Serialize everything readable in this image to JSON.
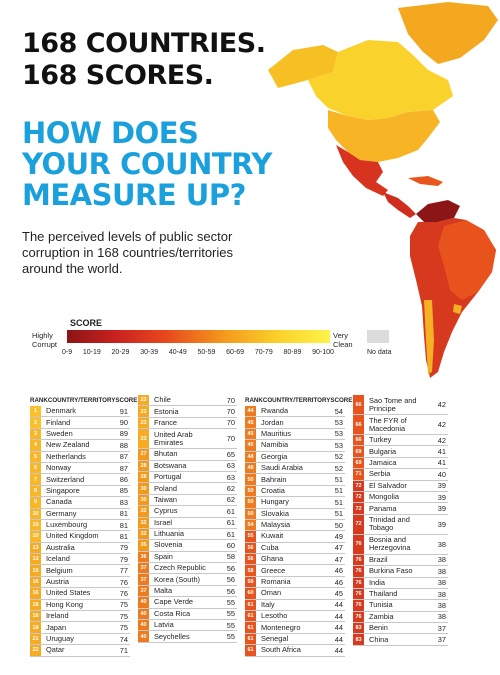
{
  "headline": {
    "line1": "168 COUNTRIES.",
    "line2": "168 SCORES."
  },
  "question": {
    "line1": "HOW DOES",
    "line2": "YOUR COUNTRY",
    "line3": "MEASURE UP?"
  },
  "intro": "The perceived levels of public sector corruption in 168 countries/territories around the world.",
  "legend": {
    "title": "SCORE",
    "left_label": [
      "Highly",
      "Corrupt"
    ],
    "right_label": [
      "Very",
      "Clean"
    ],
    "ranges": [
      "0-9",
      "10-19",
      "20-29",
      "30-39",
      "40-49",
      "50-59",
      "60-69",
      "70-79",
      "80-89",
      "90-100"
    ],
    "no_data": "No data",
    "colors": [
      "#8c1515",
      "#c82020",
      "#e8491d",
      "#f49a1c",
      "#fbd02a",
      "#fff34a"
    ],
    "no_data_color": "#dcdcdc"
  },
  "table": {
    "headers": {
      "rank": "RANK",
      "country": "COUNTRY/TERRITORY",
      "score": "SCORE"
    },
    "columns": [
      [
        {
          "rank": "1",
          "country": "Denmark",
          "score": "91"
        },
        {
          "rank": "2",
          "country": "Finland",
          "score": "90"
        },
        {
          "rank": "3",
          "country": "Sweden",
          "score": "89"
        },
        {
          "rank": "4",
          "country": "New Zealand",
          "score": "88"
        },
        {
          "rank": "5",
          "country": "Netherlands",
          "score": "87"
        },
        {
          "rank": "5",
          "country": "Norway",
          "score": "87"
        },
        {
          "rank": "7",
          "country": "Switzerland",
          "score": "86"
        },
        {
          "rank": "8",
          "country": "Singapore",
          "score": "85"
        },
        {
          "rank": "9",
          "country": "Canada",
          "score": "83"
        },
        {
          "rank": "10",
          "country": "Germany",
          "score": "81"
        },
        {
          "rank": "10",
          "country": "Luxembourg",
          "score": "81"
        },
        {
          "rank": "10",
          "country": "United Kingdom",
          "score": "81"
        },
        {
          "rank": "13",
          "country": "Australia",
          "score": "79"
        },
        {
          "rank": "13",
          "country": "Iceland",
          "score": "79"
        },
        {
          "rank": "15",
          "country": "Belgium",
          "score": "77"
        },
        {
          "rank": "16",
          "country": "Austria",
          "score": "76"
        },
        {
          "rank": "16",
          "country": "United States",
          "score": "76"
        },
        {
          "rank": "18",
          "country": "Hong Kong",
          "score": "75"
        },
        {
          "rank": "18",
          "country": "Ireland",
          "score": "75"
        },
        {
          "rank": "18",
          "country": "Japan",
          "score": "75"
        },
        {
          "rank": "21",
          "country": "Uruguay",
          "score": "74"
        },
        {
          "rank": "22",
          "country": "Qatar",
          "score": "71"
        }
      ],
      [
        {
          "rank": "23",
          "country": "Chile",
          "score": "70"
        },
        {
          "rank": "23",
          "country": "Estonia",
          "score": "70"
        },
        {
          "rank": "23",
          "country": "France",
          "score": "70"
        },
        {
          "rank": "23",
          "country": "United Arab Emirates",
          "score": "70"
        },
        {
          "rank": "27",
          "country": "Bhutan",
          "score": "65"
        },
        {
          "rank": "28",
          "country": "Botswana",
          "score": "63"
        },
        {
          "rank": "28",
          "country": "Portugal",
          "score": "63"
        },
        {
          "rank": "30",
          "country": "Poland",
          "score": "62"
        },
        {
          "rank": "30",
          "country": "Taiwan",
          "score": "62"
        },
        {
          "rank": "32",
          "country": "Cyprus",
          "score": "61"
        },
        {
          "rank": "32",
          "country": "Israel",
          "score": "61"
        },
        {
          "rank": "32",
          "country": "Lithuania",
          "score": "61"
        },
        {
          "rank": "35",
          "country": "Slovenia",
          "score": "60"
        },
        {
          "rank": "36",
          "country": "Spain",
          "score": "58"
        },
        {
          "rank": "37",
          "country": "Czech Republic",
          "score": "56"
        },
        {
          "rank": "37",
          "country": "Korea (South)",
          "score": "56"
        },
        {
          "rank": "37",
          "country": "Malta",
          "score": "56"
        },
        {
          "rank": "40",
          "country": "Cape Verde",
          "score": "55"
        },
        {
          "rank": "40",
          "country": "Costa Rica",
          "score": "55"
        },
        {
          "rank": "40",
          "country": "Latvia",
          "score": "55"
        },
        {
          "rank": "40",
          "country": "Seychelles",
          "score": "55"
        }
      ],
      [
        {
          "rank": "44",
          "country": "Rwanda",
          "score": "54"
        },
        {
          "rank": "45",
          "country": "Jordan",
          "score": "53"
        },
        {
          "rank": "45",
          "country": "Mauritius",
          "score": "53"
        },
        {
          "rank": "45",
          "country": "Namibia",
          "score": "53"
        },
        {
          "rank": "48",
          "country": "Georgia",
          "score": "52"
        },
        {
          "rank": "48",
          "country": "Saudi Arabia",
          "score": "52"
        },
        {
          "rank": "50",
          "country": "Bahrain",
          "score": "51"
        },
        {
          "rank": "50",
          "country": "Croatia",
          "score": "51"
        },
        {
          "rank": "50",
          "country": "Hungary",
          "score": "51"
        },
        {
          "rank": "50",
          "country": "Slovakia",
          "score": "51"
        },
        {
          "rank": "54",
          "country": "Malaysia",
          "score": "50"
        },
        {
          "rank": "55",
          "country": "Kuwait",
          "score": "49"
        },
        {
          "rank": "56",
          "country": "Cuba",
          "score": "47"
        },
        {
          "rank": "56",
          "country": "Ghana",
          "score": "47"
        },
        {
          "rank": "58",
          "country": "Greece",
          "score": "46"
        },
        {
          "rank": "58",
          "country": "Romania",
          "score": "46"
        },
        {
          "rank": "60",
          "country": "Oman",
          "score": "45"
        },
        {
          "rank": "61",
          "country": "Italy",
          "score": "44"
        },
        {
          "rank": "61",
          "country": "Lesotho",
          "score": "44"
        },
        {
          "rank": "61",
          "country": "Montenegro",
          "score": "44"
        },
        {
          "rank": "61",
          "country": "Senegal",
          "score": "44"
        },
        {
          "rank": "61",
          "country": "South Africa",
          "score": "44"
        }
      ],
      [
        {
          "rank": "66",
          "country": "Sao Tome and Principe",
          "score": "42"
        },
        {
          "rank": "66",
          "country": "The FYR of Macedonia",
          "score": "42"
        },
        {
          "rank": "66",
          "country": "Turkey",
          "score": "42"
        },
        {
          "rank": "69",
          "country": "Bulgaria",
          "score": "41"
        },
        {
          "rank": "69",
          "country": "Jamaica",
          "score": "41"
        },
        {
          "rank": "71",
          "country": "Serbia",
          "score": "40"
        },
        {
          "rank": "72",
          "country": "El Salvador",
          "score": "39"
        },
        {
          "rank": "72",
          "country": "Mongolia",
          "score": "39"
        },
        {
          "rank": "72",
          "country": "Panama",
          "score": "39"
        },
        {
          "rank": "72",
          "country": "Trinidad and Tobago",
          "score": "39"
        },
        {
          "rank": "76",
          "country": "Bosnia and Herzegovina",
          "score": "38"
        },
        {
          "rank": "76",
          "country": "Brazil",
          "score": "38"
        },
        {
          "rank": "76",
          "country": "Burkina Faso",
          "score": "38"
        },
        {
          "rank": "76",
          "country": "India",
          "score": "38"
        },
        {
          "rank": "76",
          "country": "Thailand",
          "score": "38"
        },
        {
          "rank": "76",
          "country": "Tunisia",
          "score": "38"
        },
        {
          "rank": "76",
          "country": "Zambia",
          "score": "38"
        },
        {
          "rank": "83",
          "country": "Benin",
          "score": "37"
        },
        {
          "rank": "83",
          "country": "China",
          "score": "37"
        }
      ]
    ]
  }
}
